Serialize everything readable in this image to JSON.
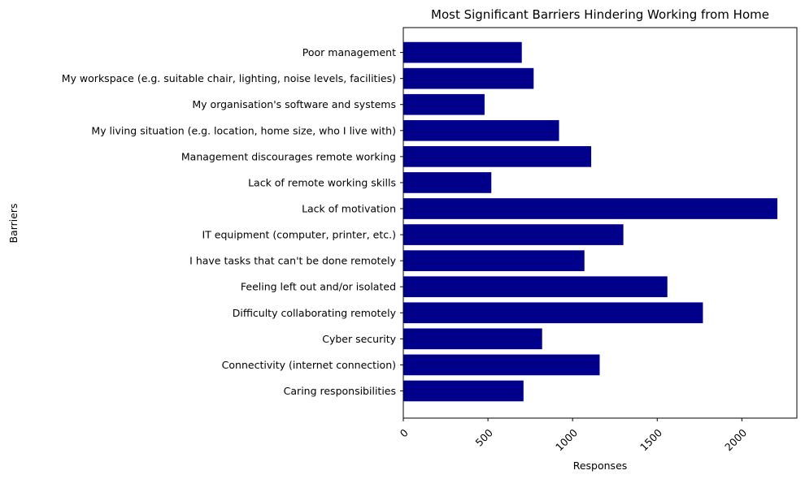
{
  "chart_data": {
    "type": "bar",
    "orientation": "horizontal",
    "title": "Most Significant Barriers Hindering Working from Home",
    "xlabel": "Responses",
    "ylabel": "Barriers",
    "categories": [
      "Caring responsibilities",
      "Connectivity (internet connection)",
      "Cyber security",
      "Difficulty collaborating remotely",
      "Feeling left out and/or isolated",
      "I have tasks that can't be done remotely",
      "IT equipment (computer, printer, etc.)",
      "Lack of motivation",
      "Lack of remote working skills",
      "Management discourages remote working",
      "My living situation (e.g. location, home size, who I live with)",
      "My organisation's software and systems",
      "My workspace (e.g. suitable chair, lighting, noise levels, facilities)",
      "Poor management"
    ],
    "values": [
      710,
      1160,
      820,
      1770,
      1560,
      1070,
      1300,
      2210,
      520,
      1110,
      920,
      480,
      770,
      700
    ],
    "xlim": [
      0,
      2325
    ],
    "xticks": [
      0,
      500,
      1000,
      1500,
      2000
    ],
    "xtick_labels": [
      "0",
      "500",
      "1000",
      "1500",
      "2000"
    ],
    "xtick_rotation": 45,
    "bar_color": "#00008b",
    "grid": false,
    "legend": "none"
  }
}
